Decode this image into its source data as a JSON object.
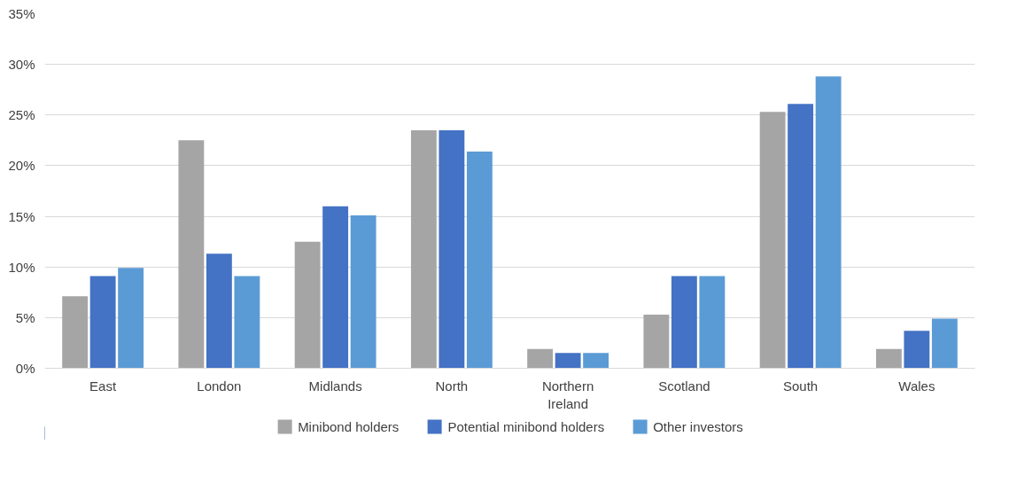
{
  "chart_data": {
    "type": "bar",
    "categories": [
      "East",
      "London",
      "Midlands",
      "North",
      "Northern Ireland",
      "Scotland",
      "South",
      "Wales"
    ],
    "series": [
      {
        "name": "Minibond holders",
        "color": "#a5a5a5",
        "values": [
          7.1,
          22.5,
          12.5,
          23.5,
          1.9,
          5.3,
          25.3,
          1.9
        ]
      },
      {
        "name": "Potential minibond holders",
        "color": "#4472c4",
        "values": [
          9.1,
          11.3,
          16.0,
          23.5,
          1.5,
          9.1,
          26.1,
          3.7
        ]
      },
      {
        "name": "Other investors",
        "color": "#5b9bd5",
        "values": [
          9.9,
          9.1,
          15.1,
          21.4,
          1.5,
          9.1,
          28.8,
          4.9
        ]
      }
    ],
    "ylim": [
      0,
      35
    ],
    "yticks": [
      {
        "value": 0,
        "label": "0%"
      },
      {
        "value": 5,
        "label": "5%"
      },
      {
        "value": 10,
        "label": "10%"
      },
      {
        "value": 15,
        "label": "15%"
      },
      {
        "value": 20,
        "label": "20%"
      },
      {
        "value": 25,
        "label": "25%"
      },
      {
        "value": 30,
        "label": "30%"
      },
      {
        "value": 35,
        "label": "35%"
      }
    ],
    "grid": "y",
    "legend": "bottom"
  }
}
